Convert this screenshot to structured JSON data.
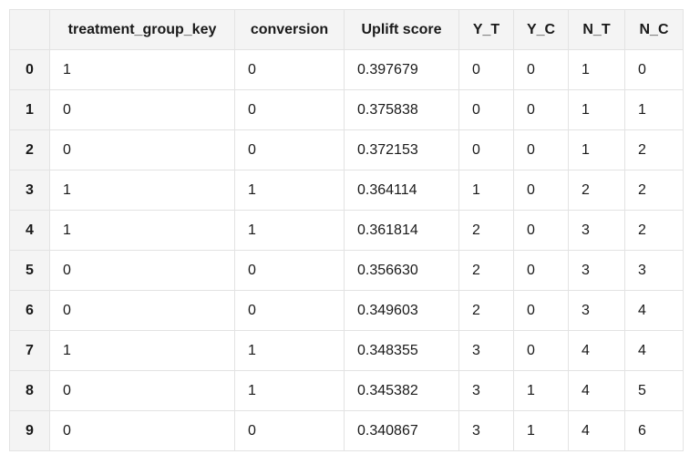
{
  "table": {
    "columns": [
      "",
      "treatment_group_key",
      "conversion",
      "Uplift score",
      "Y_T",
      "Y_C",
      "N_T",
      "N_C"
    ],
    "rows": [
      {
        "index": "0",
        "cells": [
          "1",
          "0",
          "0.397679",
          "0",
          "0",
          "1",
          "0"
        ]
      },
      {
        "index": "1",
        "cells": [
          "0",
          "0",
          "0.375838",
          "0",
          "0",
          "1",
          "1"
        ]
      },
      {
        "index": "2",
        "cells": [
          "0",
          "0",
          "0.372153",
          "0",
          "0",
          "1",
          "2"
        ]
      },
      {
        "index": "3",
        "cells": [
          "1",
          "1",
          "0.364114",
          "1",
          "0",
          "2",
          "2"
        ]
      },
      {
        "index": "4",
        "cells": [
          "1",
          "1",
          "0.361814",
          "2",
          "0",
          "3",
          "2"
        ]
      },
      {
        "index": "5",
        "cells": [
          "0",
          "0",
          "0.356630",
          "2",
          "0",
          "3",
          "3"
        ]
      },
      {
        "index": "6",
        "cells": [
          "0",
          "0",
          "0.349603",
          "2",
          "0",
          "3",
          "4"
        ]
      },
      {
        "index": "7",
        "cells": [
          "1",
          "1",
          "0.348355",
          "3",
          "0",
          "4",
          "4"
        ]
      },
      {
        "index": "8",
        "cells": [
          "0",
          "1",
          "0.345382",
          "3",
          "1",
          "4",
          "5"
        ]
      },
      {
        "index": "9",
        "cells": [
          "0",
          "0",
          "0.340867",
          "3",
          "1",
          "4",
          "6"
        ]
      }
    ]
  },
  "colors": {
    "header_bg": "#f4f4f4",
    "border": "#e3e3e3",
    "body_bg": "#ffffff"
  }
}
